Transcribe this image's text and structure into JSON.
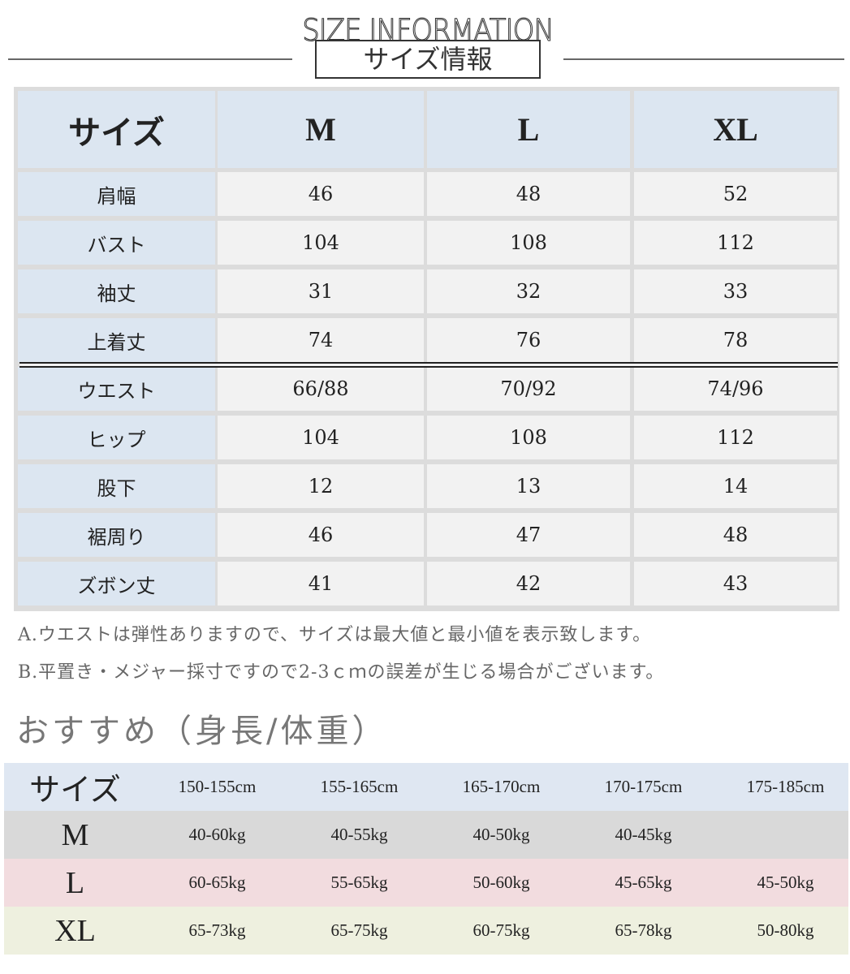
{
  "header": {
    "en_title": "SIZE INFORMATION",
    "jp_title": "サイズ情報"
  },
  "size_table": {
    "columns": [
      "サイズ",
      "M",
      "L",
      "XL"
    ],
    "rows": [
      {
        "label": "肩幅",
        "values": [
          "46",
          "48",
          "52"
        ]
      },
      {
        "label": "バスト",
        "values": [
          "104",
          "108",
          "112"
        ]
      },
      {
        "label": "袖丈",
        "values": [
          "31",
          "32",
          "33"
        ]
      },
      {
        "label": "上着丈",
        "values": [
          "74",
          "76",
          "78"
        ]
      },
      {
        "label": "ウエスト",
        "values": [
          "66/88",
          "70/92",
          "74/96"
        ]
      },
      {
        "label": "ヒップ",
        "values": [
          "104",
          "108",
          "112"
        ]
      },
      {
        "label": "股下",
        "values": [
          "12",
          "13",
          "14"
        ]
      },
      {
        "label": "裾周り",
        "values": [
          "46",
          "47",
          "48"
        ]
      },
      {
        "label": "ズボン丈",
        "values": [
          "41",
          "42",
          "43"
        ]
      }
    ]
  },
  "notes": [
    "A.ウエストは弾性ありますので、サイズは最大値と最小値を表示致します。",
    "B.平置き・メジャー採寸ですので2-3ｃｍの誤差が生じる場合がございます。"
  ],
  "recommend": {
    "title": "おすすめ（身長/体重）",
    "header": [
      "サイズ",
      "150-155cm",
      "155-165cm",
      "165-170cm",
      "170-175cm",
      "175-185cm"
    ],
    "rows": [
      {
        "label": "M",
        "values": [
          "40-60kg",
          "40-55kg",
          "40-50kg",
          "40-45kg",
          ""
        ],
        "color": "#d9d9d9"
      },
      {
        "label": "L",
        "values": [
          "60-65kg",
          "55-65kg",
          "50-60kg",
          "45-65kg",
          "45-50kg"
        ],
        "color": "#f2dcdf"
      },
      {
        "label": "XL",
        "values": [
          "65-73kg",
          "65-75kg",
          "60-75kg",
          "65-78kg",
          "50-80kg"
        ],
        "color": "#eef0df"
      }
    ],
    "header_color": "#dfe7f2"
  }
}
